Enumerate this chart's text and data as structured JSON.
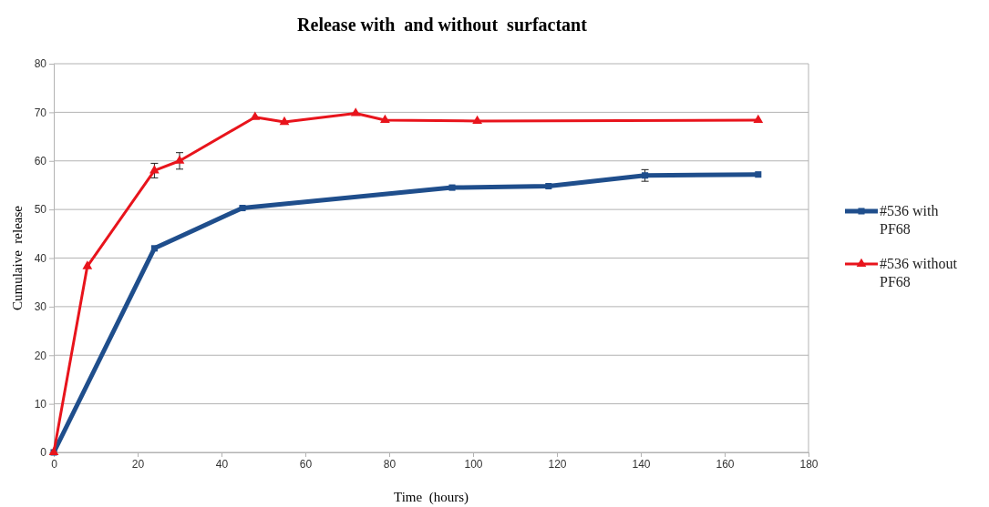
{
  "chart_data": {
    "type": "line",
    "title": "Release with  and without  surfactant",
    "xlabel": "Time  (hours)",
    "ylabel": "Cumulaive  release",
    "xlim": [
      0,
      180
    ],
    "xticks": [
      0,
      20,
      40,
      60,
      80,
      100,
      120,
      140,
      160,
      180
    ],
    "ylim": [
      0,
      80
    ],
    "yticks": [
      0,
      10,
      20,
      30,
      40,
      50,
      60,
      70,
      80
    ],
    "grid": "y",
    "legend": "right",
    "series": [
      {
        "name": "#536 with PF68",
        "color": "#1f4e8c",
        "marker": "square",
        "x": [
          0,
          24,
          45,
          95,
          118,
          141,
          168
        ],
        "values": [
          0,
          42,
          50.3,
          54.5,
          54.8,
          57,
          57.2
        ],
        "errors": [
          null,
          null,
          null,
          null,
          null,
          1.2,
          null
        ]
      },
      {
        "name": "#536 without PF68",
        "color": "#e8141c",
        "marker": "triangle",
        "x": [
          0,
          8,
          24,
          30,
          48,
          55,
          72,
          79,
          101,
          168
        ],
        "values": [
          0,
          38.3,
          58,
          60,
          69,
          68,
          69.8,
          68.4,
          68.2,
          68.4
        ],
        "errors": [
          null,
          null,
          1.5,
          1.7,
          null,
          null,
          null,
          null,
          null,
          null
        ]
      }
    ]
  }
}
